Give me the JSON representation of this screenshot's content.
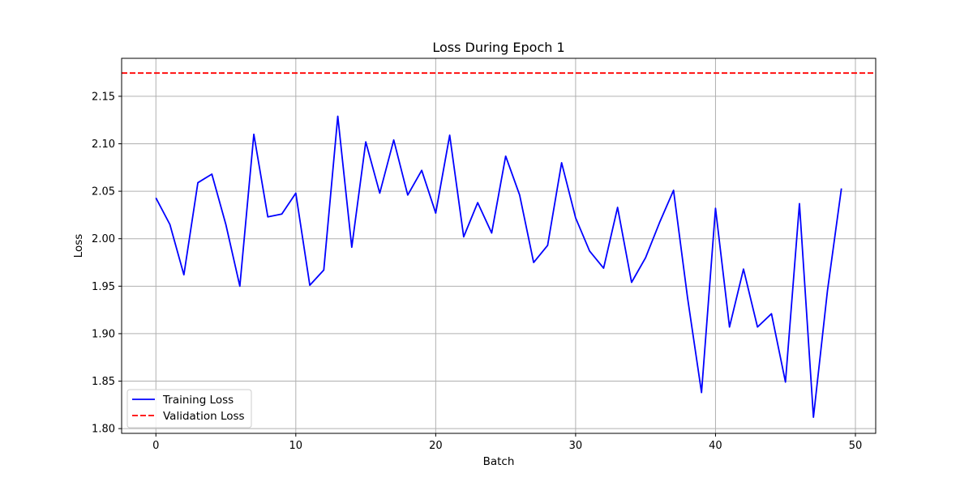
{
  "chart_data": {
    "type": "line",
    "title": "Loss During Epoch 1",
    "xlabel": "Batch",
    "ylabel": "Loss",
    "xlim": [
      -2.45,
      51.45
    ],
    "ylim": [
      1.795,
      2.19
    ],
    "xticks": [
      0,
      10,
      20,
      30,
      40,
      50
    ],
    "xtick_labels": [
      "0",
      "10",
      "20",
      "30",
      "40",
      "50"
    ],
    "yticks": [
      1.8,
      1.85,
      1.9,
      1.95,
      2.0,
      2.05,
      2.1,
      2.15
    ],
    "ytick_labels": [
      "1.80",
      "1.85",
      "1.90",
      "1.95",
      "2.00",
      "2.05",
      "2.10",
      "2.15"
    ],
    "grid": true,
    "legend_position": "lower-left",
    "series": [
      {
        "name": "Training Loss",
        "color": "#0000ff",
        "line_style": "solid",
        "x": [
          0,
          1,
          2,
          3,
          4,
          5,
          6,
          7,
          8,
          9,
          10,
          11,
          12,
          13,
          14,
          15,
          16,
          17,
          18,
          19,
          20,
          21,
          22,
          23,
          24,
          25,
          26,
          27,
          28,
          29,
          30,
          31,
          32,
          33,
          34,
          35,
          36,
          37,
          38,
          39,
          40,
          41,
          42,
          43,
          44,
          45,
          46,
          47,
          48,
          49
        ],
        "y": [
          2.043,
          2.015,
          1.962,
          2.059,
          2.068,
          2.015,
          1.95,
          2.11,
          2.023,
          2.026,
          2.048,
          1.951,
          1.967,
          2.129,
          1.991,
          2.102,
          2.048,
          2.104,
          2.046,
          2.072,
          2.027,
          2.109,
          2.002,
          2.038,
          2.006,
          2.087,
          2.046,
          1.975,
          1.993,
          2.08,
          2.022,
          1.987,
          1.969,
          2.033,
          1.954,
          1.98,
          2.017,
          2.051,
          1.938,
          1.838,
          2.032,
          1.907,
          1.968,
          1.907,
          1.921,
          1.849,
          2.037,
          1.812,
          1.945,
          2.053
        ]
      },
      {
        "name": "Validation Loss",
        "color": "#ff0000",
        "line_style": "dashed",
        "y_constant": 2.1745
      }
    ]
  }
}
